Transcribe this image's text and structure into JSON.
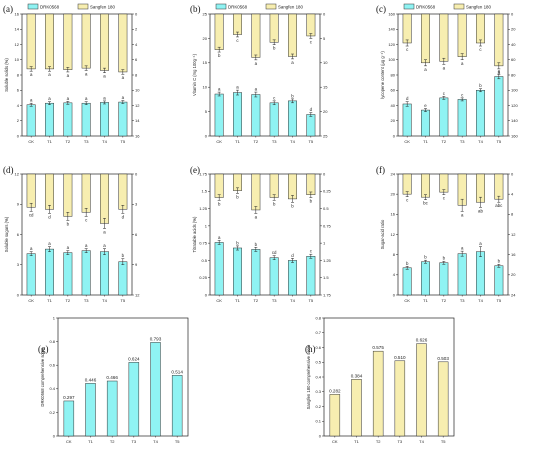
{
  "colors": {
    "drk": "#8ff3f3",
    "sang": "#f7eeb0",
    "stroke": "#333333"
  },
  "legend": {
    "series": [
      "DRK0568",
      "Sangfen 180"
    ]
  },
  "chart_data": [
    {
      "id": "a",
      "panel_label": "(a)",
      "type": "bar",
      "ylabel": "Soluble solids (%)",
      "ylabel_right": "",
      "categories": [
        "CK",
        "T1",
        "T2",
        "T3",
        "T4",
        "T5"
      ],
      "ylim": [
        0,
        16
      ],
      "yticks": [
        0,
        2,
        4,
        6,
        8,
        10,
        12,
        14,
        16
      ],
      "ylim_right": [
        0,
        16
      ],
      "yticks_right": [
        0,
        2,
        4,
        6,
        8,
        10,
        12,
        14,
        16
      ],
      "right_inverted": true,
      "series": [
        {
          "name": "DRK0568",
          "values": [
            4.1,
            4.3,
            4.35,
            4.3,
            4.4,
            4.45
          ],
          "errors": [
            0.2,
            0.2,
            0.2,
            0.2,
            0.2,
            0.2
          ],
          "letters": [
            "a",
            "a",
            "a",
            "a",
            "a",
            "a"
          ]
        },
        {
          "name": "Sangfen 180",
          "values": [
            7.2,
            7.2,
            7.3,
            7.1,
            7.4,
            7.6
          ],
          "errors": [
            0.3,
            0.3,
            0.3,
            0.3,
            0.3,
            0.3
          ],
          "letters": [
            "a",
            "a",
            "a",
            "a",
            "a",
            "a"
          ]
        }
      ],
      "show_legend": true
    },
    {
      "id": "b",
      "panel_label": "(b)",
      "type": "bar",
      "ylabel": "Vitamin C (mg 100g⁻¹)",
      "ylabel_right": "",
      "categories": [
        "CK",
        "T1",
        "T2",
        "T3",
        "T4",
        "T5"
      ],
      "ylim": [
        0,
        25
      ],
      "yticks": [
        0,
        5,
        10,
        15,
        20,
        25
      ],
      "ylim_right": [
        0,
        25
      ],
      "yticks_right": [
        0,
        5,
        10,
        15,
        20,
        25
      ],
      "right_inverted": true,
      "series": [
        {
          "name": "DRK0568",
          "values": [
            8.6,
            8.9,
            8.5,
            6.8,
            7.2,
            4.4
          ],
          "errors": [
            0.4,
            0.5,
            0.5,
            0.4,
            0.4,
            0.4
          ],
          "letters": [
            "a",
            "a",
            "a",
            "c",
            "b",
            "d"
          ]
        },
        {
          "name": "Sangfen 180",
          "values": [
            7.3,
            4.2,
            8.9,
            5.8,
            8.7,
            4.5
          ],
          "errors": [
            0.5,
            0.5,
            0.5,
            0.5,
            0.5,
            0.5
          ],
          "letters": [
            "b",
            "c",
            "a",
            "b",
            "a",
            "c"
          ]
        }
      ],
      "show_legend": true
    },
    {
      "id": "c",
      "panel_label": "(c)",
      "type": "bar",
      "ylabel": "lycopene content (μg g⁻¹)",
      "ylabel_right": "",
      "categories": [
        "CK",
        "T1",
        "T2",
        "T3",
        "T4",
        "T5"
      ],
      "ylim": [
        0,
        160
      ],
      "yticks": [
        0,
        20,
        40,
        60,
        80,
        100,
        120,
        140,
        160
      ],
      "ylim_right": [
        0,
        160
      ],
      "yticks_right": [
        0,
        20,
        40,
        60,
        80,
        100,
        120,
        140,
        160
      ],
      "right_inverted": true,
      "series": [
        {
          "name": "DRK0568",
          "values": [
            42,
            34,
            50,
            48,
            60,
            78
          ],
          "errors": [
            3,
            2,
            2,
            2,
            2,
            3
          ],
          "letters": [
            "d",
            "e",
            "c",
            "c",
            "b",
            "a"
          ]
        },
        {
          "name": "Sangfen 180",
          "values": [
            38,
            64,
            62,
            56,
            38,
            68
          ],
          "errors": [
            4,
            4,
            4,
            4,
            4,
            4
          ],
          "letters": [
            "c",
            "a",
            "a",
            "a",
            "c",
            "a"
          ]
        }
      ],
      "show_legend": true
    },
    {
      "id": "d",
      "panel_label": "(d)",
      "type": "bar",
      "ylabel": "Soluble sugars (%)",
      "ylabel_right": "",
      "categories": [
        "CK",
        "T1",
        "T2",
        "T3",
        "T4",
        "T5"
      ],
      "ylim": [
        0,
        12
      ],
      "yticks": [
        0,
        3,
        6,
        9,
        12
      ],
      "ylim_right": [
        0,
        12
      ],
      "yticks_right": [
        0,
        3,
        6,
        9,
        12
      ],
      "right_inverted": true,
      "series": [
        {
          "name": "DRK0568",
          "values": [
            4.1,
            4.55,
            4.2,
            4.4,
            4.3,
            3.3
          ],
          "errors": [
            0.2,
            0.25,
            0.2,
            0.2,
            0.3,
            0.3
          ],
          "letters": [
            "a",
            "a",
            "a",
            "a",
            "a",
            "b"
          ]
        },
        {
          "name": "Sangfen 180",
          "values": [
            3.3,
            3.5,
            4.2,
            3.8,
            4.9,
            3.5
          ],
          "errors": [
            0.4,
            0.4,
            0.4,
            0.4,
            0.5,
            0.4
          ],
          "letters": [
            "cd",
            "d",
            "b",
            "c",
            "a",
            "d"
          ]
        }
      ],
      "show_legend": false
    },
    {
      "id": "e",
      "panel_label": "(e)",
      "type": "bar",
      "ylabel": "Titratable acids (%)",
      "ylabel_right": "",
      "categories": [
        "CK",
        "T1",
        "T2",
        "T3",
        "T4",
        "T5"
      ],
      "ylim": [
        0,
        1.75
      ],
      "yticks": [
        0,
        0.25,
        0.5,
        0.75,
        1.0,
        1.25,
        1.5,
        1.75
      ],
      "ylim_right": [
        0,
        1.75
      ],
      "yticks_right": [
        0,
        0.25,
        0.5,
        0.75,
        1.0,
        1.25,
        1.5,
        1.75
      ],
      "right_inverted": true,
      "series": [
        {
          "name": "DRK0568",
          "values": [
            0.76,
            0.68,
            0.66,
            0.54,
            0.5,
            0.56
          ],
          "errors": [
            0.03,
            0.03,
            0.03,
            0.03,
            0.03,
            0.03
          ],
          "letters": [
            "a",
            "b",
            "b",
            "cd",
            "d",
            "c"
          ]
        },
        {
          "name": "Sangfen 180",
          "values": [
            0.34,
            0.24,
            0.52,
            0.34,
            0.36,
            0.3
          ],
          "errors": [
            0.04,
            0.04,
            0.05,
            0.04,
            0.05,
            0.04
          ],
          "letters": [
            "b",
            "b",
            "a",
            "b",
            "b",
            "b"
          ]
        }
      ],
      "show_legend": false
    },
    {
      "id": "f",
      "panel_label": "(f)",
      "type": "bar",
      "ylabel": "Sugar-acid ratio",
      "ylabel_right": "",
      "categories": [
        "CK",
        "T1",
        "T2",
        "T3",
        "T4",
        "T5"
      ],
      "ylim": [
        0,
        24
      ],
      "yticks": [
        0,
        4,
        8,
        12,
        16,
        20,
        24
      ],
      "ylim_right": [
        0,
        24
      ],
      "yticks_right": [
        0,
        4,
        8,
        12,
        16,
        20,
        24
      ],
      "right_inverted": true,
      "series": [
        {
          "name": "DRK0568",
          "values": [
            5.4,
            6.6,
            6.4,
            8.2,
            8.6,
            5.8
          ],
          "errors": [
            0.3,
            0.3,
            0.3,
            0.5,
            1.0,
            0.3
          ],
          "letters": [
            "b",
            "b",
            "b",
            "a",
            "a",
            "b"
          ]
        },
        {
          "name": "Sangfen 180",
          "values": [
            4.0,
            4.6,
            3.6,
            6.2,
            5.6,
            5.0
          ],
          "errors": [
            0.5,
            0.5,
            0.5,
            1.2,
            1.0,
            0.6
          ],
          "letters": [
            "c",
            "bc",
            "c",
            "a",
            "ab",
            "abc"
          ]
        }
      ],
      "show_legend": false
    },
    {
      "id": "g",
      "panel_label": "(g)",
      "type": "bar",
      "ylabel": "DRK0568 comprehensive score",
      "ylabel_right": "",
      "categories": [
        "CK",
        "T1",
        "T2",
        "T3",
        "T4",
        "T5"
      ],
      "ylim": [
        0,
        1.0
      ],
      "yticks": [
        0.0,
        0.2,
        0.4,
        0.6,
        0.8,
        1.0
      ],
      "series": [
        {
          "name": "DRK0568",
          "values": [
            0.297,
            0.446,
            0.466,
            0.624,
            0.793,
            0.514
          ],
          "labels": [
            "0.297",
            "0.446",
            "0.466",
            "0.624",
            "0.793",
            "0.514"
          ]
        }
      ],
      "show_legend": false
    },
    {
      "id": "h",
      "panel_label": "(h)",
      "type": "bar",
      "ylabel": "Sangfen 180 comprehensive score",
      "ylabel_right": "",
      "categories": [
        "CK",
        "T1",
        "T2",
        "T3",
        "T4",
        "T5"
      ],
      "ylim": [
        0,
        0.8
      ],
      "yticks": [
        0.0,
        0.1,
        0.2,
        0.3,
        0.4,
        0.5,
        0.6,
        0.7,
        0.8
      ],
      "series": [
        {
          "name": "Sangfen 180",
          "values": [
            0.282,
            0.384,
            0.575,
            0.51,
            0.626,
            0.503
          ],
          "labels": [
            "0.282",
            "0.384",
            "0.575",
            "0.510",
            "0.626",
            "0.503"
          ]
        }
      ],
      "show_legend": false
    }
  ]
}
